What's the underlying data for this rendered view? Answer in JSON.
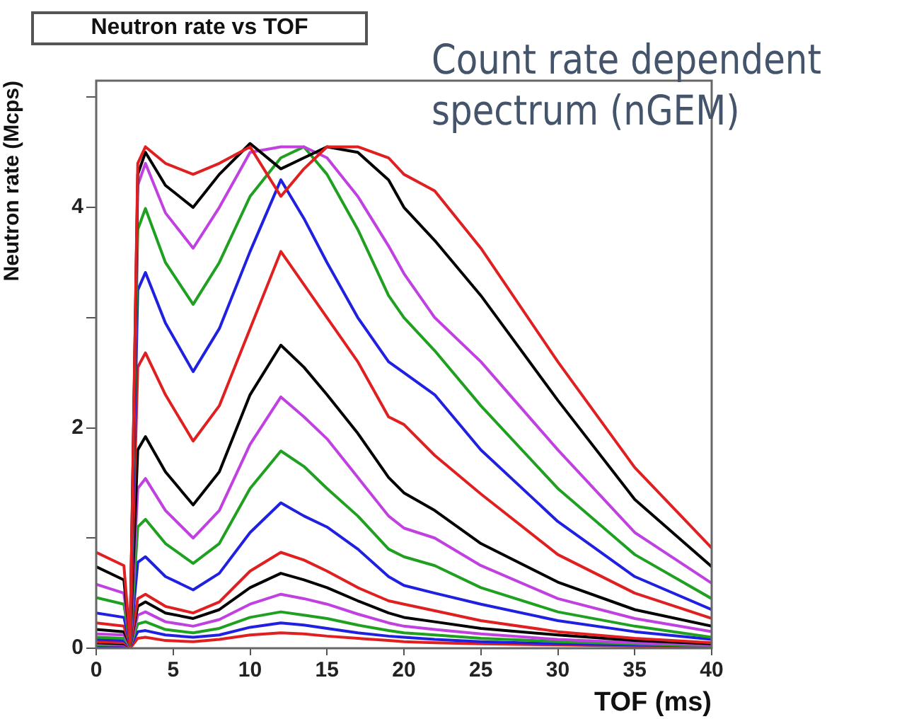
{
  "chart_data": {
    "type": "line",
    "title": "Neutron rate vs TOF",
    "xlabel": "TOF (ms)",
    "ylabel": "Neutron rate (Mcps)",
    "annotations": [
      "Count rate dependent spectrum (nGEM)"
    ],
    "x": [
      0,
      1.8,
      2.2,
      2.7,
      3.2,
      4.5,
      6.3,
      8,
      10,
      12,
      13.5,
      15,
      17,
      19,
      20,
      22,
      25,
      30,
      35,
      40
    ],
    "xlim": [
      0,
      40
    ],
    "xticks": [
      0,
      5,
      10,
      15,
      20,
      25,
      30,
      35,
      40
    ],
    "ylim": [
      0,
      5.15
    ],
    "yticks": [
      0,
      {
        "value": 1,
        "label": null
      },
      2,
      {
        "value": 3,
        "label": null
      },
      4,
      {
        "value": 5,
        "label": null
      }
    ],
    "grid": false,
    "marker": "none",
    "series": [
      {
        "color": "#e02020",
        "values": [
          0.87,
          0.75,
          0.05,
          4.4,
          4.55,
          4.4,
          4.3,
          4.4,
          4.55,
          4.1,
          4.35,
          4.55,
          4.55,
          4.45,
          4.3,
          4.15,
          3.63,
          2.6,
          1.64,
          0.91
        ]
      },
      {
        "color": "#000000",
        "values": [
          0.74,
          0.62,
          0.05,
          4.3,
          4.5,
          4.2,
          4.0,
          4.3,
          4.58,
          4.35,
          4.45,
          4.55,
          4.5,
          4.25,
          4.0,
          3.7,
          3.2,
          2.25,
          1.35,
          0.74
        ]
      },
      {
        "color": "#c040e0",
        "values": [
          0.58,
          0.5,
          0.05,
          4.2,
          4.4,
          3.95,
          3.63,
          4.0,
          4.5,
          4.55,
          4.55,
          4.45,
          4.1,
          3.65,
          3.4,
          3.0,
          2.6,
          1.8,
          1.05,
          0.59
        ]
      },
      {
        "color": "#20a020",
        "values": [
          0.46,
          0.4,
          0.04,
          3.8,
          3.99,
          3.5,
          3.12,
          3.5,
          4.1,
          4.45,
          4.55,
          4.3,
          3.8,
          3.2,
          3.0,
          2.7,
          2.2,
          1.45,
          0.85,
          0.45
        ]
      },
      {
        "color": "#2020e0",
        "values": [
          0.32,
          0.28,
          0.04,
          3.25,
          3.41,
          2.95,
          2.51,
          2.9,
          3.6,
          4.25,
          3.9,
          3.5,
          3.0,
          2.6,
          2.5,
          2.3,
          1.8,
          1.15,
          0.65,
          0.35
        ]
      },
      {
        "color": "#e02020",
        "values": [
          0.23,
          0.2,
          0.03,
          2.55,
          2.68,
          2.3,
          1.88,
          2.2,
          2.9,
          3.6,
          3.3,
          3.0,
          2.6,
          2.1,
          2.03,
          1.75,
          1.4,
          0.85,
          0.5,
          0.27
        ]
      },
      {
        "color": "#000000",
        "values": [
          0.17,
          0.15,
          0.03,
          1.8,
          1.92,
          1.6,
          1.3,
          1.6,
          2.3,
          2.75,
          2.55,
          2.3,
          1.95,
          1.55,
          1.41,
          1.25,
          0.95,
          0.6,
          0.35,
          0.2
        ]
      },
      {
        "color": "#c040e0",
        "values": [
          0.13,
          0.12,
          0.02,
          1.45,
          1.54,
          1.25,
          1.0,
          1.25,
          1.85,
          2.28,
          2.1,
          1.9,
          1.55,
          1.2,
          1.09,
          1.0,
          0.75,
          0.45,
          0.27,
          0.15
        ]
      },
      {
        "color": "#20a020",
        "values": [
          0.1,
          0.09,
          0.02,
          1.1,
          1.17,
          0.95,
          0.77,
          0.95,
          1.45,
          1.79,
          1.65,
          1.45,
          1.2,
          0.9,
          0.83,
          0.75,
          0.55,
          0.33,
          0.2,
          0.1
        ]
      },
      {
        "color": "#2020e0",
        "values": [
          0.08,
          0.07,
          0.02,
          0.78,
          0.83,
          0.65,
          0.53,
          0.68,
          1.05,
          1.32,
          1.2,
          1.1,
          0.9,
          0.65,
          0.57,
          0.5,
          0.4,
          0.25,
          0.15,
          0.08
        ]
      },
      {
        "color": "#e02020",
        "values": [
          0.06,
          0.05,
          0.01,
          0.45,
          0.49,
          0.38,
          0.32,
          0.42,
          0.7,
          0.87,
          0.8,
          0.7,
          0.55,
          0.43,
          0.4,
          0.34,
          0.25,
          0.15,
          0.09,
          0.05
        ]
      },
      {
        "color": "#000000",
        "values": [
          0.05,
          0.04,
          0.01,
          0.38,
          0.42,
          0.32,
          0.27,
          0.35,
          0.55,
          0.68,
          0.62,
          0.55,
          0.43,
          0.32,
          0.28,
          0.24,
          0.18,
          0.12,
          0.07,
          0.04
        ]
      },
      {
        "color": "#c040e0",
        "values": [
          0.04,
          0.03,
          0.01,
          0.3,
          0.33,
          0.24,
          0.2,
          0.26,
          0.4,
          0.49,
          0.45,
          0.4,
          0.31,
          0.23,
          0.2,
          0.17,
          0.13,
          0.08,
          0.05,
          0.03
        ]
      },
      {
        "color": "#20a020",
        "values": [
          0.03,
          0.03,
          0.01,
          0.22,
          0.24,
          0.17,
          0.14,
          0.18,
          0.28,
          0.33,
          0.3,
          0.27,
          0.21,
          0.16,
          0.14,
          0.12,
          0.09,
          0.06,
          0.04,
          0.02
        ]
      },
      {
        "color": "#2020e0",
        "values": [
          0.02,
          0.02,
          0.01,
          0.15,
          0.16,
          0.12,
          0.1,
          0.12,
          0.19,
          0.23,
          0.21,
          0.18,
          0.14,
          0.11,
          0.1,
          0.08,
          0.06,
          0.04,
          0.03,
          0.02
        ]
      },
      {
        "color": "#e02020",
        "values": [
          0.01,
          0.01,
          0.0,
          0.09,
          0.1,
          0.07,
          0.06,
          0.08,
          0.12,
          0.14,
          0.13,
          0.11,
          0.09,
          0.07,
          0.06,
          0.05,
          0.04,
          0.03,
          0.02,
          0.01
        ]
      }
    ]
  }
}
